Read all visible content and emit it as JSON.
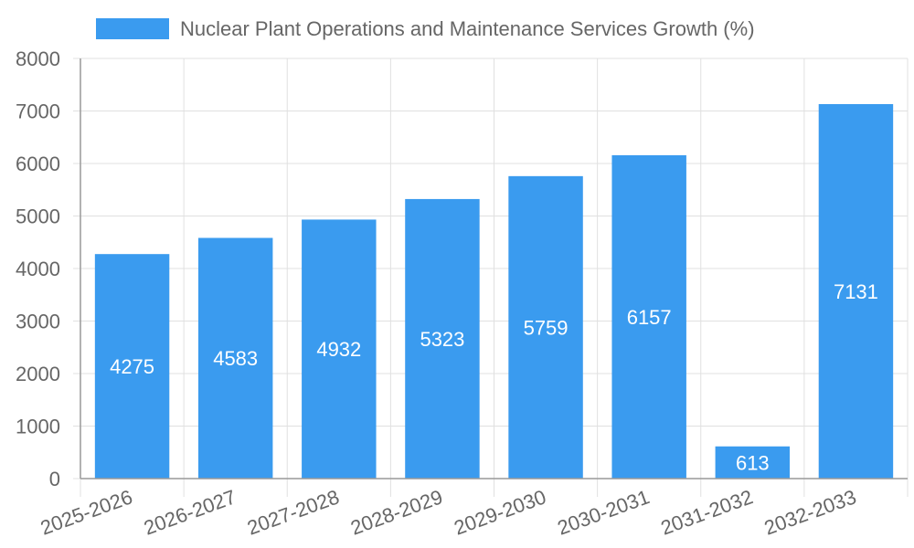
{
  "chart_data": {
    "type": "bar",
    "title": "",
    "xlabel": "",
    "ylabel": "",
    "legend": {
      "label": "Nuclear Plant Operations and Maintenance Services Growth (%)",
      "position": "top-center"
    },
    "categories": [
      "2025-2026",
      "2026-2027",
      "2027-2028",
      "2028-2029",
      "2029-2030",
      "2030-2031",
      "2031-2032",
      "2032-2033"
    ],
    "series": [
      {
        "name": "Nuclear Plant Operations and Maintenance Services Growth (%)",
        "values": [
          4275,
          4583,
          4932,
          5323,
          5759,
          6157,
          613,
          7131
        ]
      }
    ],
    "ylim": [
      0,
      8000
    ],
    "yticks": [
      0,
      1000,
      2000,
      3000,
      4000,
      5000,
      6000,
      7000,
      8000
    ],
    "grid": true,
    "colors": {
      "bar": "#3a9bef",
      "grid": "#e0e0e0",
      "axis": "#999999",
      "text": "#666666",
      "label": "#ffffff"
    }
  }
}
